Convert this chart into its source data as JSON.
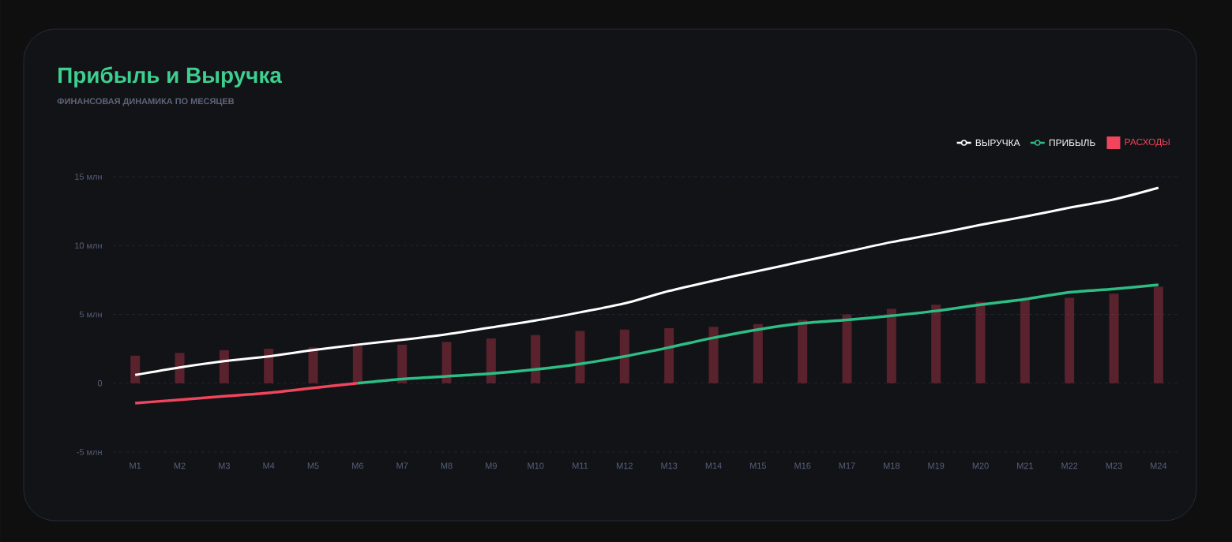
{
  "chart_data": {
    "type": "line",
    "title": "Прибыль и Выручка",
    "subtitle": "ФИНАНСОВАЯ ДИНАМИКА ПО МЕСЯЦЕВ",
    "categories": [
      "M1",
      "M2",
      "M3",
      "M4",
      "M5",
      "M6",
      "M7",
      "M8",
      "M9",
      "M10",
      "M11",
      "M12",
      "M13",
      "M14",
      "M15",
      "M16",
      "M17",
      "M18",
      "M19",
      "M20",
      "M21",
      "M22",
      "M23",
      "M24"
    ],
    "series": [
      {
        "name": "ВЫРУЧКА",
        "type": "line",
        "color": "#ffffff",
        "values": [
          0.6,
          1.15,
          1.6,
          1.95,
          2.4,
          2.8,
          3.15,
          3.55,
          4.05,
          4.55,
          5.15,
          5.8,
          6.7,
          7.45,
          8.15,
          8.85,
          9.55,
          10.25,
          10.85,
          11.5,
          12.1,
          12.75,
          13.35,
          14.2
        ]
      },
      {
        "color": "#f0455c",
        "values": [
          -1.45,
          -1.2,
          -0.95,
          -0.7,
          -0.35,
          0,
          null,
          null,
          null,
          null,
          null,
          null,
          null,
          null,
          null,
          null,
          null,
          null,
          null,
          null,
          null,
          null,
          null,
          null
        ]
      },
      {
        "name": "ПРИБЫЛЬ",
        "type": "line",
        "color": "#2dbd85",
        "values": [
          null,
          null,
          null,
          null,
          null,
          0,
          0.3,
          0.5,
          0.7,
          1.0,
          1.4,
          1.95,
          2.6,
          3.3,
          3.9,
          4.35,
          4.6,
          4.9,
          5.25,
          5.7,
          6.1,
          6.6,
          6.85,
          7.15
        ]
      },
      {
        "name": "РАСХОДЫ",
        "type": "bar",
        "color": "#f0455c",
        "values": [
          2.0,
          2.2,
          2.4,
          2.5,
          2.6,
          2.7,
          2.8,
          3.0,
          3.25,
          3.5,
          3.8,
          3.9,
          4.0,
          4.1,
          4.3,
          4.6,
          5.0,
          5.4,
          5.7,
          5.9,
          6.0,
          6.2,
          6.5,
          7.0
        ]
      }
    ],
    "ylim": [
      -5,
      15
    ],
    "yticks": [
      {
        "value": -5,
        "label": "-5 млн"
      },
      0,
      {
        "value": 5,
        "label": "5 млн"
      },
      {
        "value": 10,
        "label": "10 млн"
      },
      {
        "value": 15,
        "label": "15 млн"
      }
    ],
    "grid": "y",
    "legend": "top right"
  }
}
